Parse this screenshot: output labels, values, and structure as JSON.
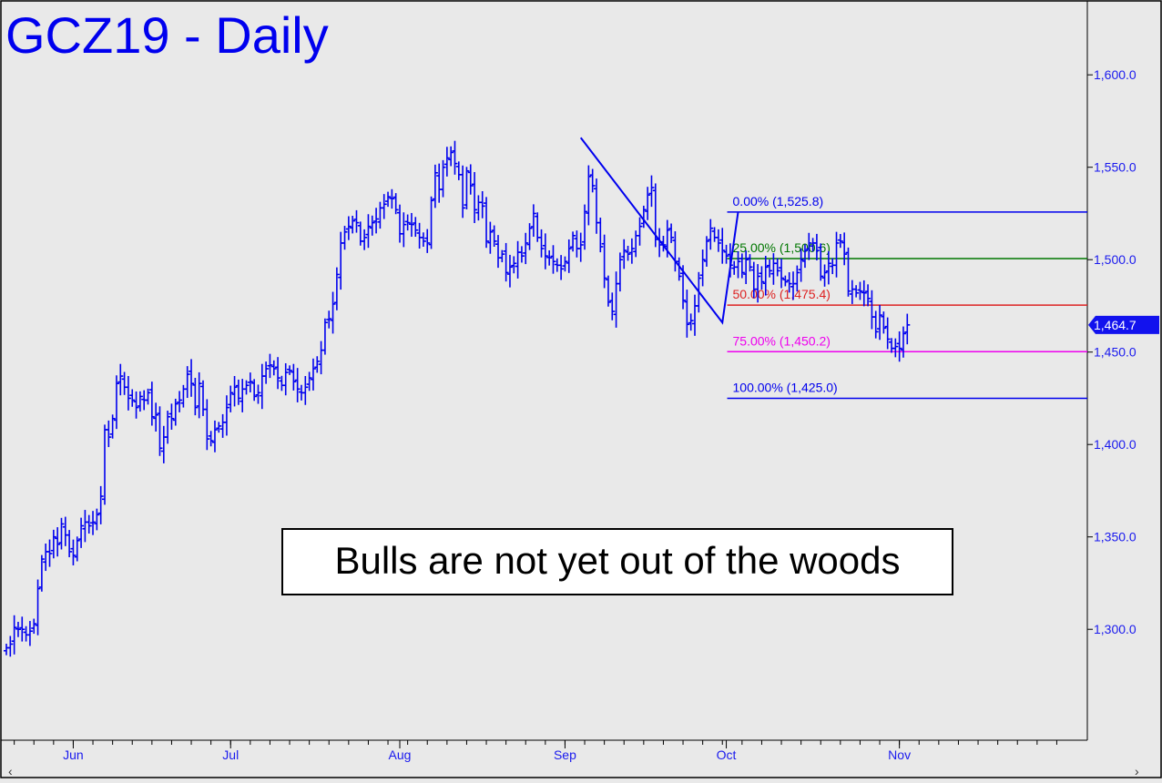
{
  "chart_data": {
    "type": "ohlc",
    "title": "GCZ19 - Daily",
    "annotation": "Bulls are not yet out of the woods",
    "price_tag": "1,464.7",
    "last_price": 1464.7,
    "ylim": [
      1240,
      1640
    ],
    "grid": false,
    "colors": {
      "bars": "#0000ee",
      "background": "#e9e9e9",
      "axis_text": "#1a1aee",
      "price_tag_bg": "#1212ee"
    },
    "y_ticks": [
      {
        "value": 1600,
        "label": "1,600.0"
      },
      {
        "value": 1550,
        "label": "1,550.0"
      },
      {
        "value": 1500,
        "label": "1,500.0"
      },
      {
        "value": 1450,
        "label": "1,450.0"
      },
      {
        "value": 1400,
        "label": "1,400.0"
      },
      {
        "value": 1350,
        "label": "1,350.0"
      },
      {
        "value": 1300,
        "label": "1,300.0"
      }
    ],
    "x_labels": [
      {
        "label": "Jun",
        "index": 17
      },
      {
        "label": "Jul",
        "index": 57
      },
      {
        "label": "Aug",
        "index": 100
      },
      {
        "label": "Sep",
        "index": 142
      },
      {
        "label": "Oct",
        "index": 183
      },
      {
        "label": "Nov",
        "index": 227
      }
    ],
    "fib_levels": [
      {
        "label": "0.00% (1,525.8)",
        "value": 1525.8,
        "color": "#0000ee"
      },
      {
        "label": "25.00% (1,500.6)",
        "value": 1500.6,
        "color": "#007700"
      },
      {
        "label": "50.00% (1,475.4)",
        "value": 1475.4,
        "color": "#dd2222"
      },
      {
        "label": "75.00% (1,450.2)",
        "value": 1450.2,
        "color": "#ee00ee"
      },
      {
        "label": "100.00% (1,425.0)",
        "value": 1425.0,
        "color": "#0000ee"
      }
    ],
    "pattern_points": [
      {
        "index": 146,
        "price": 1566
      },
      {
        "index": 182,
        "price": 1466
      },
      {
        "index": 186,
        "price": 1525.8
      }
    ],
    "closes": [
      1290,
      1292,
      1301,
      1300,
      1300,
      1297,
      1299,
      1303,
      1322,
      1338,
      1342,
      1341,
      1350,
      1346,
      1357,
      1351,
      1342,
      1340,
      1348,
      1356,
      1358,
      1356,
      1358,
      1362,
      1372,
      1408,
      1404,
      1414,
      1433,
      1437,
      1431,
      1425,
      1424,
      1420,
      1426,
      1424,
      1428,
      1415,
      1416,
      1398,
      1404,
      1415,
      1414,
      1422,
      1424,
      1430,
      1438,
      1433,
      1420,
      1433,
      1419,
      1403,
      1402,
      1408,
      1410,
      1412,
      1420,
      1428,
      1431,
      1425,
      1430,
      1432,
      1434,
      1426,
      1428,
      1437,
      1441,
      1443,
      1441,
      1436,
      1432,
      1439,
      1440,
      1434,
      1430,
      1428,
      1431,
      1436,
      1441,
      1445,
      1451,
      1466,
      1468,
      1476,
      1492,
      1509,
      1515,
      1518,
      1521,
      1520,
      1510,
      1512,
      1518,
      1520,
      1522,
      1528,
      1530,
      1534,
      1533,
      1527,
      1514,
      1519,
      1520,
      1519,
      1516,
      1512,
      1510,
      1509,
      1532,
      1547,
      1538,
      1550,
      1555,
      1558,
      1552,
      1546,
      1528,
      1548,
      1540,
      1527,
      1531,
      1529,
      1510,
      1515,
      1510,
      1501,
      1503,
      1493,
      1496,
      1498,
      1504,
      1502,
      1509,
      1517,
      1525,
      1512,
      1506,
      1502,
      1501,
      1499,
      1497,
      1495,
      1499,
      1506,
      1513,
      1506,
      1508,
      1526,
      1545,
      1540,
      1520,
      1507,
      1490,
      1477,
      1472,
      1487,
      1500,
      1505,
      1503,
      1506,
      1513,
      1518,
      1527,
      1535,
      1539,
      1511,
      1508,
      1508,
      1516,
      1512,
      1499,
      1491,
      1478,
      1465,
      1467,
      1475,
      1490,
      1500,
      1510,
      1517,
      1512,
      1509,
      1505,
      1502,
      1497,
      1496,
      1499,
      1493,
      1500,
      1496,
      1484,
      1491,
      1488,
      1496,
      1494,
      1498,
      1494,
      1490,
      1488,
      1487,
      1487,
      1493,
      1500,
      1505,
      1509,
      1509,
      1505,
      1491,
      1493,
      1498,
      1497,
      1509,
      1510,
      1503,
      1483,
      1484,
      1482,
      1483,
      1482,
      1479,
      1469,
      1461,
      1470,
      1463,
      1457,
      1452,
      1453,
      1452,
      1460,
      1464.7
    ]
  }
}
